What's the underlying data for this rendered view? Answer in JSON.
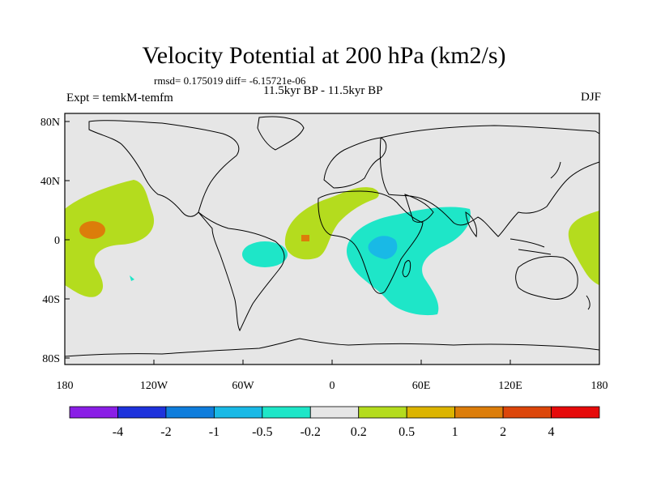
{
  "title": "Velocity Potential at 200 hPa (km2/s)",
  "stats": "rmsd= 0.175019 diff= -6.15721e-06",
  "period": "11.5kyr BP - 11.5kyr BP",
  "expt": "Expt = temkM-temfm",
  "season": "DJF",
  "x_ticks": [
    "180",
    "120W",
    "60W",
    "0",
    "60E",
    "120E",
    "180"
  ],
  "y_ticks": [
    "80N",
    "40N",
    "0",
    "40S",
    "80S"
  ],
  "colorbar": {
    "labels": [
      "-4",
      "-2",
      "-1",
      "-0.5",
      "-0.2",
      "0.2",
      "0.5",
      "1",
      "2",
      "4"
    ],
    "colors": [
      "#8a1ee6",
      "#1e32dc",
      "#0f7ddc",
      "#19b9e6",
      "#1ee6c8",
      "#e6e6e6",
      "#b4dc1e",
      "#dcb400",
      "#dc7d0a",
      "#dc460a",
      "#e60a0a"
    ]
  },
  "colors": {
    "land_ocean": "#e6e6e6",
    "positive_weak": "#b4dc1e",
    "positive_mid": "#dcb400",
    "positive_strong": "#dc7d0a",
    "negative_weak": "#1ee6c8",
    "negative_mid": "#19b9e6",
    "negative_strong": "#0f7ddc",
    "coast": "#000000"
  }
}
